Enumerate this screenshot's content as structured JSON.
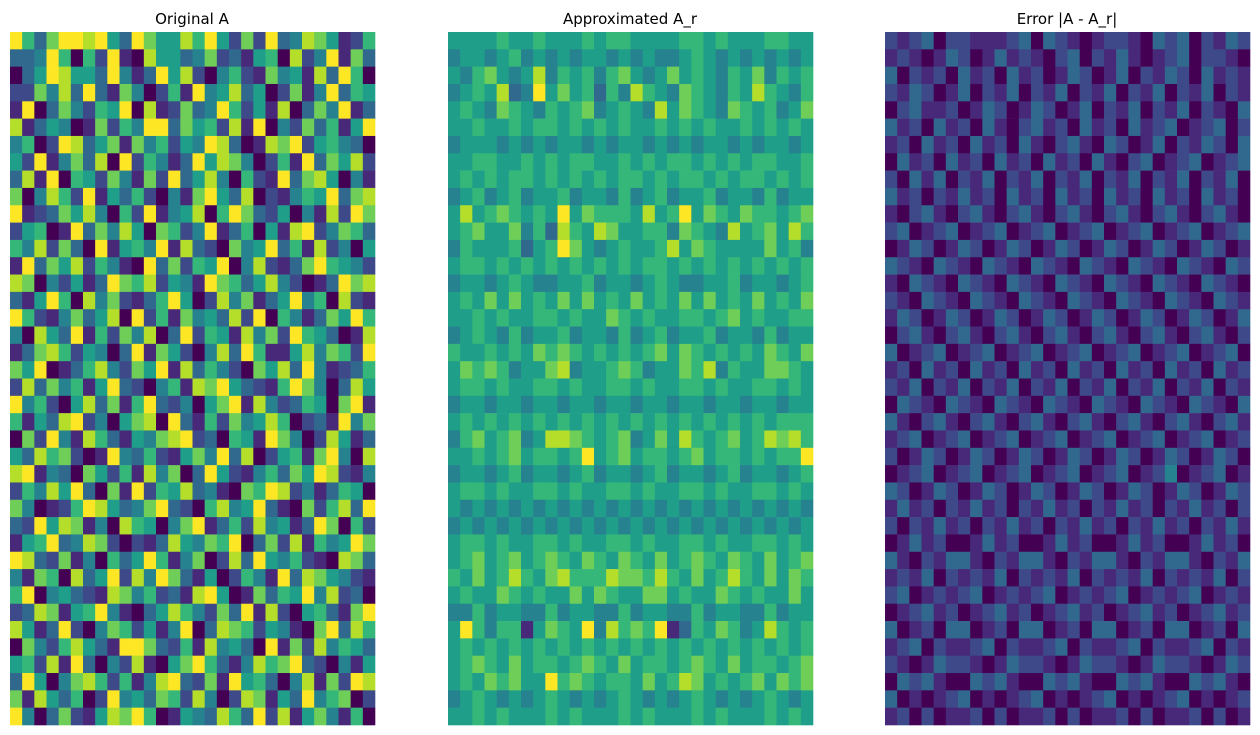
{
  "chart_data": [
    {
      "type": "heatmap",
      "title": "Original A",
      "rows": 40,
      "cols": 30,
      "colormap": "viridis",
      "value_encoding": "digit 0-9 per cell = normalized intensity level",
      "axis": "off",
      "values": [
        "963799895397558695272934875126",
        "334960629108553472315608249173",
        "035985539413958204621745183960",
        "227483931740261945835027149365",
        "190374265908127349625180374913",
        "813540172649937562819042736159",
        "460298357174625498301879256430",
        "529147380926413958740261937582",
        "381906527417293584062193785041",
        "704862915362041795380214659378",
        "912375840629145806973250418297",
        "256019374850762491360518924763",
        "648273091564918320745936182405",
        "193758264109372659048213796542",
        "870425139768254197635842013978",
        "315960847213695028471359460821",
        "962147358092617453829064137596",
        "408539162748039265184729653018",
        "137862540391752048396115847629",
        "759013684275918364207583941236",
        "283746159320461879532169740385",
        "946205837169324057918423650791",
        "615389240578093162745860231947",
        "072941863154789230651974028513",
        "538672019436215749380256179408",
        "891430752618470395214637598214",
        "264859307192658341076982413650",
        "740126985347932068459310726839",
        "329587140865047913628451397062",
        "156934872021385476903728164597",
        "983271406359614702839546210873",
        "417608359284973150264193875421",
        "690453218746231895017365948230",
        "238715694103586427391820563179",
        "851392047625149038762541079386",
        "074268531997326184530917284653",
        "562819304281057963148679320415",
        "395047862614893271956304817298",
        "718536029453762840287153946702",
        "940372158796015438639281574160"
      ]
    },
    {
      "type": "heatmap",
      "title": "Approximated A_r",
      "rows": 40,
      "cols": 30,
      "colormap": "viridis",
      "value_encoding": "digit 0-9 per cell = normalized intensity level",
      "axis": "off",
      "values": [
        "555565565556566555566565556655",
        "455456454545545454456545454545",
        "546754584656467545756546574656",
        "456583495756364865476546586546",
        "565476546567456548576547656457",
        "556556566565656556565655656565",
        "455545454554545545454554545545",
        "556655656566556565665656566556",
        "565656656565656656566565665656",
        "456456455645546456455645546455",
        "585676565957666585695765766567",
        "567557463865875566476548567586",
        "465556356975456556857655557564",
        "566565656565656566565656565656",
        "455456544556455456544556455456",
        "565757565757565756575756575657",
        "556565566565576565566567565566",
        "456546455645546456455645546455",
        "655656576765656567576565657657",
        "576764557845567645576846557765",
        "566565566565566565566565566565",
        "455455455455455455455455455455",
        "565656565656565656565656565666",
        "467567458876567457586567568786",
        "556567566569567566567566565669",
        "455456455456455456455456455456",
        "566565566565566565566565566565",
        "545454545454545454545454545454",
        "454545454545454545454545454545",
        "566565566565566565566565566565",
        "567567567657657657567657657567",
        "657568657866687768657568657576",
        "565576565575765577565576565575",
        "446455446455446455446455446455",
        "596466157659486769136576458656",
        "565656565656565656565656565656",
        "567657566567657566567657566567",
        "565767559676566575687565675767",
        "456545456545456545456545456545",
        "556565556565556565556565556565"
      ]
    },
    {
      "type": "heatmap",
      "title": "Error |A - A_r|",
      "rows": 40,
      "cols": 30,
      "colormap": "viridis",
      "value_encoding": "digit 0-9 per cell = normalized intensity level",
      "axis": "off",
      "values": [
        "212302211123032101221032302132",
        "121013201312102302131012302210",
        "302120312031201320130213203121",
        "213201302130213021302130213021",
        "023112013201320130213021302103",
        "312031203102312031203123012302",
        "120312031203102310320130213203",
        "031203120312031203102301230123",
        "203130213021302130213021302130",
        "312021312031203120312031203120",
        "102310231023102310231023102310",
        "230123012301230123012301230123",
        "013201320132013201320132013201",
        "321032103210321032103210321032",
        "103210321032103210321032103210",
        "210321032103210321032103210321",
        "132013201320132013201320132013",
        "023102310231023102310231023102",
        "301230123012301230123012301230",
        "120312031203120312031203120312",
        "213021302130213021302130213021",
        "032103210321032103210321032103",
        "310231023102310231023102310231",
        "123012301230123012301230123012",
        "201320132013201320132013201320",
        "012301230123012301230124012301",
        "320132013201320132013201320132",
        "131202131202131202131202131202",
        "202131202131202131202131202131",
        "013120013120013120013120013120",
        "310213310213310213310213310213",
        "121302121302121302121302121302",
        "230121230121230121230121230121",
        "012312012312012312012312012312",
        "301203301203301203301203301203",
        "123021123021123021123021123021",
        "210132210132210132210132210132",
        "032310032310032310032310032310",
        "301012301012301012301012301012",
        "120201120201120201120201120201"
      ]
    }
  ],
  "colors": {
    "viridis": [
      "#440154",
      "#482878",
      "#3e4989",
      "#31688e",
      "#26828e",
      "#1f9e89",
      "#35b779",
      "#6ece58",
      "#b5de2b",
      "#fde725"
    ]
  }
}
